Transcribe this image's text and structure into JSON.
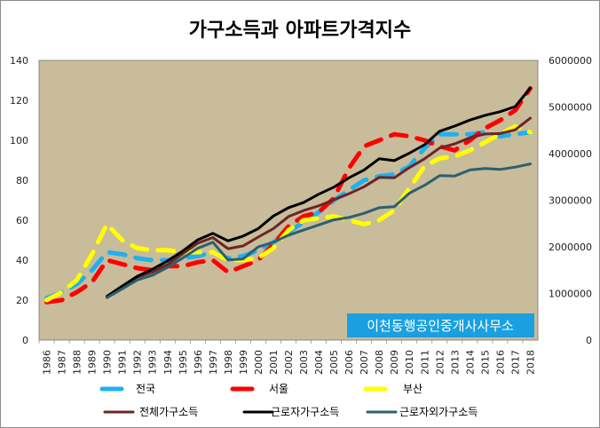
{
  "chart_data": {
    "type": "line",
    "title": "가구소득과 아파트가격지수",
    "watermark": "이천동행공인중개사사무소",
    "plot_bg": "#c8bc9a",
    "left_axis": {
      "ylim": [
        0,
        140
      ],
      "ticks": [
        "0",
        "20",
        "40",
        "60",
        "80",
        "100",
        "120",
        "140"
      ]
    },
    "right_axis": {
      "ylim": [
        0,
        6000000
      ],
      "ticks": [
        "0",
        "1000000",
        "2000000",
        "3000000",
        "4000000",
        "5000000",
        "6000000"
      ]
    },
    "categories": [
      "1986",
      "1987",
      "1988",
      "1989",
      "1990",
      "1991",
      "1992",
      "1993",
      "1994",
      "1995",
      "1996",
      "1997",
      "1998",
      "1999",
      "2000",
      "2001",
      "2002",
      "2003",
      "2004",
      "2005",
      "2006",
      "2007",
      "2008",
      "2009",
      "2010",
      "2011",
      "2012",
      "2013",
      "2014",
      "2015",
      "2016",
      "2017",
      "2018"
    ],
    "series": [
      {
        "name": "전국",
        "axis": "left",
        "color": "#1fb0f0",
        "style": "dashed",
        "values": [
          21,
          24,
          28,
          35,
          44,
          43,
          41,
          40,
          40,
          41,
          42,
          44,
          41,
          42,
          45,
          49,
          54,
          59,
          64,
          70,
          75,
          80,
          82,
          83,
          87,
          96,
          103,
          103,
          103,
          104,
          102,
          103,
          104
        ]
      },
      {
        "name": "서울",
        "axis": "left",
        "color": "#ff0000",
        "style": "dashed",
        "values": [
          19,
          20,
          24,
          29,
          40,
          38,
          36,
          35,
          37,
          37,
          39,
          40,
          34,
          37,
          40,
          48,
          57,
          62,
          64,
          71,
          86,
          97,
          100,
          103,
          102,
          100,
          97,
          95,
          100,
          106,
          110,
          115,
          126
        ]
      },
      {
        "name": "부산",
        "axis": "left",
        "color": "#ffff00",
        "style": "dashed",
        "values": [
          20,
          24,
          30,
          43,
          58,
          50,
          46,
          45,
          45,
          44,
          44,
          44,
          40,
          40,
          41,
          46,
          55,
          60,
          61,
          62,
          60,
          58,
          60,
          65,
          76,
          87,
          91,
          92,
          95,
          99,
          103,
          107,
          104
        ]
      },
      {
        "name": "전체가구소득",
        "axis": "right",
        "color": "#6b2525",
        "style": "solid",
        "values": [
          null,
          null,
          null,
          null,
          930000,
          1150000,
          1350000,
          1460000,
          1620000,
          1850000,
          2080000,
          2200000,
          1960000,
          2020000,
          2210000,
          2390000,
          2650000,
          2780000,
          2880000,
          3010000,
          3140000,
          3290000,
          3490000,
          3480000,
          3700000,
          3890000,
          4120000,
          4210000,
          4340000,
          4420000,
          4430000,
          4510000,
          4760000
        ]
      },
      {
        "name": "근로자가구소득",
        "axis": "right",
        "color": "#000000",
        "style": "solid",
        "values": [
          null,
          null,
          null,
          null,
          940000,
          1160000,
          1370000,
          1520000,
          1700000,
          1910000,
          2150000,
          2290000,
          2130000,
          2230000,
          2390000,
          2660000,
          2840000,
          2950000,
          3130000,
          3280000,
          3480000,
          3650000,
          3890000,
          3850000,
          4010000,
          4190000,
          4480000,
          4590000,
          4720000,
          4820000,
          4900000,
          5010000,
          5410000
        ]
      },
      {
        "name": "근로자외가구소득",
        "axis": "right",
        "color": "#2c5f70",
        "style": "solid",
        "values": [
          null,
          null,
          null,
          null,
          910000,
          1100000,
          1290000,
          1390000,
          1560000,
          1760000,
          1970000,
          2100000,
          1720000,
          1740000,
          2000000,
          2100000,
          2250000,
          2360000,
          2470000,
          2580000,
          2630000,
          2720000,
          2840000,
          2860000,
          3150000,
          3320000,
          3530000,
          3520000,
          3650000,
          3680000,
          3660000,
          3710000,
          3780000
        ]
      }
    ],
    "legend": {
      "placement": "bottom"
    },
    "grid": false
  }
}
